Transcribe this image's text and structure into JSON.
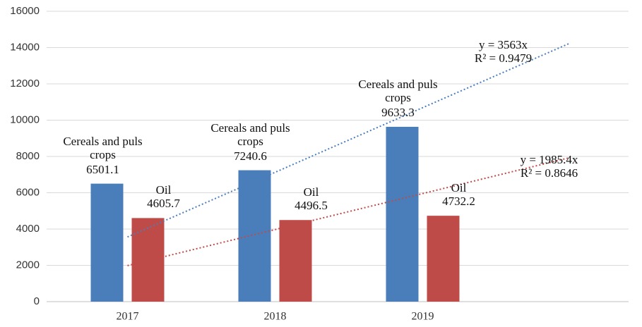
{
  "chart_data": {
    "type": "bar",
    "categories": [
      "2017",
      "2018",
      "2019"
    ],
    "series": [
      {
        "name": "Cereals and puls crops",
        "color": "#4a7ebb",
        "values": [
          6501.1,
          7240.6,
          9633.3
        ]
      },
      {
        "name": "Oil",
        "color": "#be4b48",
        "values": [
          4605.7,
          4496.5,
          4732.2
        ]
      }
    ],
    "trendlines": [
      {
        "series": 0,
        "type": "linear",
        "slope": 3563,
        "forecast_forward": 1,
        "color": "#4a7ebb",
        "equation": "y = 3563x",
        "r2": "R² = 0.9479"
      },
      {
        "series": 1,
        "type": "linear",
        "slope": 1985.4,
        "forecast_forward": 1,
        "color": "#be4b48",
        "equation": "y = 1985.4x",
        "r2": "R² = 0.8646"
      }
    ],
    "ylim": [
      0,
      16000
    ],
    "yticks": [
      0,
      2000,
      4000,
      6000,
      8000,
      10000,
      12000,
      14000,
      16000
    ],
    "grid": true
  }
}
